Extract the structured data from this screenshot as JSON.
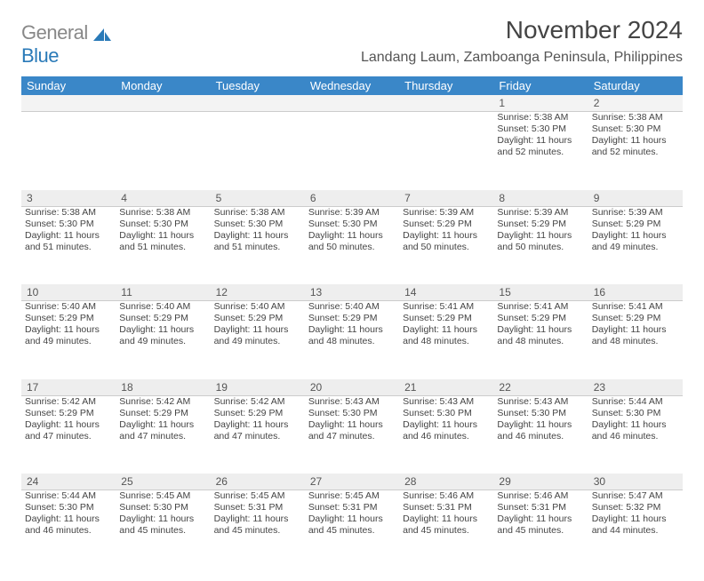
{
  "logo": {
    "gray": "General",
    "blue": "Blue"
  },
  "header": {
    "title": "November 2024",
    "location": "Landang Laum, Zamboanga Peninsula, Philippines"
  },
  "colors": {
    "headerBar": "#3a87c8",
    "dayStrip": "#eeeeee",
    "ruleLine": "#cccccc",
    "logoBlue": "#2a7ab8",
    "logoGray": "#888888",
    "text": "#444444"
  },
  "weekdays": [
    "Sunday",
    "Monday",
    "Tuesday",
    "Wednesday",
    "Thursday",
    "Friday",
    "Saturday"
  ],
  "weeks": [
    [
      null,
      null,
      null,
      null,
      null,
      {
        "n": "1",
        "sr": "Sunrise: 5:38 AM",
        "ss": "Sunset: 5:30 PM",
        "d1": "Daylight: 11 hours",
        "d2": "and 52 minutes."
      },
      {
        "n": "2",
        "sr": "Sunrise: 5:38 AM",
        "ss": "Sunset: 5:30 PM",
        "d1": "Daylight: 11 hours",
        "d2": "and 52 minutes."
      }
    ],
    [
      {
        "n": "3",
        "sr": "Sunrise: 5:38 AM",
        "ss": "Sunset: 5:30 PM",
        "d1": "Daylight: 11 hours",
        "d2": "and 51 minutes."
      },
      {
        "n": "4",
        "sr": "Sunrise: 5:38 AM",
        "ss": "Sunset: 5:30 PM",
        "d1": "Daylight: 11 hours",
        "d2": "and 51 minutes."
      },
      {
        "n": "5",
        "sr": "Sunrise: 5:38 AM",
        "ss": "Sunset: 5:30 PM",
        "d1": "Daylight: 11 hours",
        "d2": "and 51 minutes."
      },
      {
        "n": "6",
        "sr": "Sunrise: 5:39 AM",
        "ss": "Sunset: 5:30 PM",
        "d1": "Daylight: 11 hours",
        "d2": "and 50 minutes."
      },
      {
        "n": "7",
        "sr": "Sunrise: 5:39 AM",
        "ss": "Sunset: 5:29 PM",
        "d1": "Daylight: 11 hours",
        "d2": "and 50 minutes."
      },
      {
        "n": "8",
        "sr": "Sunrise: 5:39 AM",
        "ss": "Sunset: 5:29 PM",
        "d1": "Daylight: 11 hours",
        "d2": "and 50 minutes."
      },
      {
        "n": "9",
        "sr": "Sunrise: 5:39 AM",
        "ss": "Sunset: 5:29 PM",
        "d1": "Daylight: 11 hours",
        "d2": "and 49 minutes."
      }
    ],
    [
      {
        "n": "10",
        "sr": "Sunrise: 5:40 AM",
        "ss": "Sunset: 5:29 PM",
        "d1": "Daylight: 11 hours",
        "d2": "and 49 minutes."
      },
      {
        "n": "11",
        "sr": "Sunrise: 5:40 AM",
        "ss": "Sunset: 5:29 PM",
        "d1": "Daylight: 11 hours",
        "d2": "and 49 minutes."
      },
      {
        "n": "12",
        "sr": "Sunrise: 5:40 AM",
        "ss": "Sunset: 5:29 PM",
        "d1": "Daylight: 11 hours",
        "d2": "and 49 minutes."
      },
      {
        "n": "13",
        "sr": "Sunrise: 5:40 AM",
        "ss": "Sunset: 5:29 PM",
        "d1": "Daylight: 11 hours",
        "d2": "and 48 minutes."
      },
      {
        "n": "14",
        "sr": "Sunrise: 5:41 AM",
        "ss": "Sunset: 5:29 PM",
        "d1": "Daylight: 11 hours",
        "d2": "and 48 minutes."
      },
      {
        "n": "15",
        "sr": "Sunrise: 5:41 AM",
        "ss": "Sunset: 5:29 PM",
        "d1": "Daylight: 11 hours",
        "d2": "and 48 minutes."
      },
      {
        "n": "16",
        "sr": "Sunrise: 5:41 AM",
        "ss": "Sunset: 5:29 PM",
        "d1": "Daylight: 11 hours",
        "d2": "and 48 minutes."
      }
    ],
    [
      {
        "n": "17",
        "sr": "Sunrise: 5:42 AM",
        "ss": "Sunset: 5:29 PM",
        "d1": "Daylight: 11 hours",
        "d2": "and 47 minutes."
      },
      {
        "n": "18",
        "sr": "Sunrise: 5:42 AM",
        "ss": "Sunset: 5:29 PM",
        "d1": "Daylight: 11 hours",
        "d2": "and 47 minutes."
      },
      {
        "n": "19",
        "sr": "Sunrise: 5:42 AM",
        "ss": "Sunset: 5:29 PM",
        "d1": "Daylight: 11 hours",
        "d2": "and 47 minutes."
      },
      {
        "n": "20",
        "sr": "Sunrise: 5:43 AM",
        "ss": "Sunset: 5:30 PM",
        "d1": "Daylight: 11 hours",
        "d2": "and 47 minutes."
      },
      {
        "n": "21",
        "sr": "Sunrise: 5:43 AM",
        "ss": "Sunset: 5:30 PM",
        "d1": "Daylight: 11 hours",
        "d2": "and 46 minutes."
      },
      {
        "n": "22",
        "sr": "Sunrise: 5:43 AM",
        "ss": "Sunset: 5:30 PM",
        "d1": "Daylight: 11 hours",
        "d2": "and 46 minutes."
      },
      {
        "n": "23",
        "sr": "Sunrise: 5:44 AM",
        "ss": "Sunset: 5:30 PM",
        "d1": "Daylight: 11 hours",
        "d2": "and 46 minutes."
      }
    ],
    [
      {
        "n": "24",
        "sr": "Sunrise: 5:44 AM",
        "ss": "Sunset: 5:30 PM",
        "d1": "Daylight: 11 hours",
        "d2": "and 46 minutes."
      },
      {
        "n": "25",
        "sr": "Sunrise: 5:45 AM",
        "ss": "Sunset: 5:30 PM",
        "d1": "Daylight: 11 hours",
        "d2": "and 45 minutes."
      },
      {
        "n": "26",
        "sr": "Sunrise: 5:45 AM",
        "ss": "Sunset: 5:31 PM",
        "d1": "Daylight: 11 hours",
        "d2": "and 45 minutes."
      },
      {
        "n": "27",
        "sr": "Sunrise: 5:45 AM",
        "ss": "Sunset: 5:31 PM",
        "d1": "Daylight: 11 hours",
        "d2": "and 45 minutes."
      },
      {
        "n": "28",
        "sr": "Sunrise: 5:46 AM",
        "ss": "Sunset: 5:31 PM",
        "d1": "Daylight: 11 hours",
        "d2": "and 45 minutes."
      },
      {
        "n": "29",
        "sr": "Sunrise: 5:46 AM",
        "ss": "Sunset: 5:31 PM",
        "d1": "Daylight: 11 hours",
        "d2": "and 45 minutes."
      },
      {
        "n": "30",
        "sr": "Sunrise: 5:47 AM",
        "ss": "Sunset: 5:32 PM",
        "d1": "Daylight: 11 hours",
        "d2": "and 44 minutes."
      }
    ]
  ]
}
